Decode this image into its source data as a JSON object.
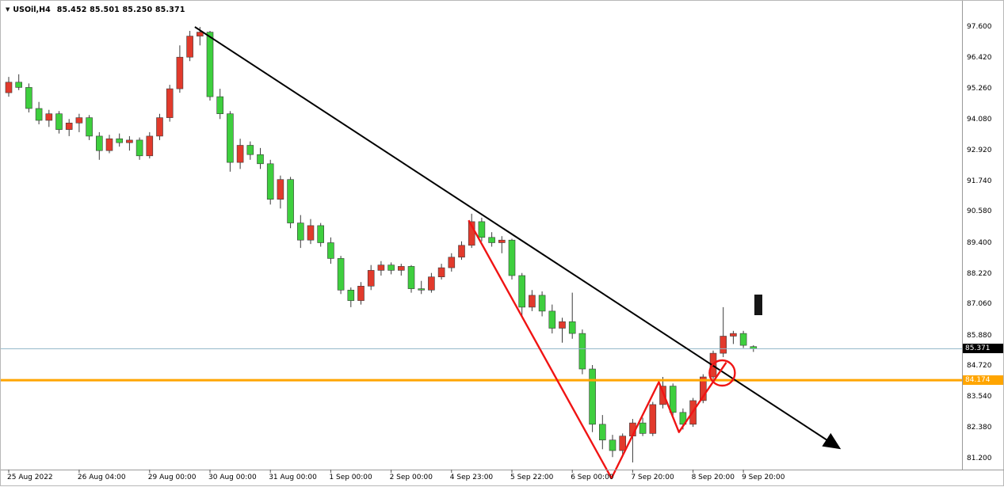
{
  "title_bar": {
    "symbol": "USOil,H4",
    "ohlc_text": "85.452 85.501 85.250 85.371",
    "icon": "chart-symbol-dropdown-icon"
  },
  "colors": {
    "bull": "#e23a2c",
    "bear": "#3ecf3e",
    "wick": "#3a3a3a",
    "trend": "#000000",
    "zigzag": "#f01414",
    "current_line": "#8fb4c6",
    "hline": "#ffa500",
    "axis_border": "#9a9a9a",
    "background": "#ffffff"
  },
  "chart_data": {
    "type": "candlestick",
    "symbol": "USOil",
    "timeframe": "H4",
    "title": "USOil,H4",
    "grid": "off",
    "legend": "none",
    "current_bar": {
      "open": 85.452,
      "high": 85.501,
      "low": 85.25,
      "close": 85.371
    },
    "y_axis_ticks": [
      "97.600",
      "96.420",
      "95.260",
      "94.080",
      "92.920",
      "91.740",
      "90.580",
      "89.400",
      "88.220",
      "87.060",
      "85.880",
      "84.720",
      "83.540",
      "82.380",
      "81.200"
    ],
    "y_range": [
      81.2,
      97.6
    ],
    "x_ticks": [
      {
        "i": 0,
        "label": "25 Aug 2022"
      },
      {
        "i": 7,
        "label": "26 Aug 04:00"
      },
      {
        "i": 14,
        "label": "29 Aug 00:00"
      },
      {
        "i": 20,
        "label": "30 Aug 00:00"
      },
      {
        "i": 26,
        "label": "31 Aug 00:00"
      },
      {
        "i": 32,
        "label": "1 Sep 00:00"
      },
      {
        "i": 38,
        "label": "2 Sep 00:00"
      },
      {
        "i": 44,
        "label": "4 Sep 23:00"
      },
      {
        "i": 50,
        "label": "5 Sep 22:00"
      },
      {
        "i": 56,
        "label": "6 Sep 00:00"
      },
      {
        "i": 62,
        "label": "7 Sep 20:00"
      },
      {
        "i": 68,
        "label": "8 Sep 20:00"
      },
      {
        "i": 73,
        "label": "9 Sep 20:00"
      }
    ],
    "candles_format": [
      "open",
      "high",
      "low",
      "close"
    ],
    "candles": [
      [
        95.1,
        95.7,
        94.95,
        95.5
      ],
      [
        95.5,
        95.8,
        95.2,
        95.3
      ],
      [
        95.3,
        95.45,
        94.35,
        94.5
      ],
      [
        94.5,
        94.75,
        93.9,
        94.05
      ],
      [
        94.05,
        94.45,
        93.8,
        94.3
      ],
      [
        94.3,
        94.4,
        93.55,
        93.7
      ],
      [
        93.7,
        94.1,
        93.45,
        93.95
      ],
      [
        93.95,
        94.3,
        93.6,
        94.15
      ],
      [
        94.15,
        94.25,
        93.3,
        93.45
      ],
      [
        93.45,
        93.6,
        92.55,
        92.9
      ],
      [
        92.9,
        93.5,
        92.8,
        93.35
      ],
      [
        93.35,
        93.55,
        93.05,
        93.2
      ],
      [
        93.2,
        93.45,
        92.9,
        93.3
      ],
      [
        93.3,
        93.4,
        92.55,
        92.7
      ],
      [
        92.7,
        93.6,
        92.6,
        93.45
      ],
      [
        93.45,
        94.3,
        93.3,
        94.15
      ],
      [
        94.15,
        95.4,
        94.0,
        95.25
      ],
      [
        95.25,
        96.9,
        95.1,
        96.45
      ],
      [
        96.45,
        97.45,
        96.3,
        97.25
      ],
      [
        97.25,
        97.6,
        96.9,
        97.4
      ],
      [
        97.4,
        97.45,
        94.8,
        94.95
      ],
      [
        94.95,
        95.25,
        94.1,
        94.3
      ],
      [
        94.3,
        94.4,
        92.1,
        92.45
      ],
      [
        92.45,
        93.35,
        92.2,
        93.1
      ],
      [
        93.1,
        93.25,
        92.55,
        92.75
      ],
      [
        92.75,
        93.0,
        92.2,
        92.4
      ],
      [
        92.4,
        92.55,
        90.85,
        91.05
      ],
      [
        91.05,
        91.95,
        90.7,
        91.8
      ],
      [
        91.8,
        91.9,
        89.95,
        90.15
      ],
      [
        90.15,
        90.45,
        89.2,
        89.5
      ],
      [
        89.5,
        90.3,
        89.35,
        90.05
      ],
      [
        90.05,
        90.15,
        89.25,
        89.4
      ],
      [
        89.4,
        89.6,
        88.6,
        88.8
      ],
      [
        88.8,
        88.9,
        87.45,
        87.6
      ],
      [
        87.6,
        87.7,
        86.95,
        87.2
      ],
      [
        87.2,
        87.9,
        87.05,
        87.75
      ],
      [
        87.75,
        88.55,
        87.6,
        88.35
      ],
      [
        88.35,
        88.7,
        88.15,
        88.55
      ],
      [
        88.55,
        88.65,
        88.2,
        88.35
      ],
      [
        88.35,
        88.6,
        88.15,
        88.5
      ],
      [
        88.5,
        88.55,
        87.5,
        87.65
      ],
      [
        87.65,
        87.95,
        87.45,
        87.6
      ],
      [
        87.6,
        88.25,
        87.5,
        88.1
      ],
      [
        88.1,
        88.6,
        88.0,
        88.45
      ],
      [
        88.45,
        89.0,
        88.3,
        88.85
      ],
      [
        88.85,
        89.45,
        88.75,
        89.3
      ],
      [
        89.3,
        90.5,
        89.2,
        90.2
      ],
      [
        90.2,
        90.35,
        89.45,
        89.6
      ],
      [
        89.6,
        89.8,
        89.25,
        89.4
      ],
      [
        89.4,
        89.65,
        89.0,
        89.5
      ],
      [
        89.5,
        89.55,
        88.0,
        88.15
      ],
      [
        88.15,
        88.25,
        86.6,
        86.95
      ],
      [
        86.95,
        87.6,
        86.8,
        87.4
      ],
      [
        87.4,
        87.55,
        86.6,
        86.8
      ],
      [
        86.8,
        87.05,
        85.95,
        86.15
      ],
      [
        86.15,
        86.55,
        85.6,
        86.4
      ],
      [
        86.4,
        87.5,
        85.75,
        85.95
      ],
      [
        85.95,
        86.1,
        84.4,
        84.6
      ],
      [
        84.6,
        84.75,
        82.2,
        82.5
      ],
      [
        82.5,
        82.85,
        81.55,
        81.9
      ],
      [
        81.9,
        82.1,
        81.25,
        81.5
      ],
      [
        81.5,
        82.15,
        81.35,
        82.05
      ],
      [
        82.05,
        82.7,
        81.05,
        82.55
      ],
      [
        82.55,
        82.75,
        82.05,
        82.15
      ],
      [
        82.15,
        83.35,
        82.05,
        83.25
      ],
      [
        83.25,
        84.3,
        83.1,
        83.95
      ],
      [
        83.95,
        84.05,
        82.8,
        82.95
      ],
      [
        82.95,
        83.1,
        82.3,
        82.5
      ],
      [
        82.5,
        83.5,
        82.4,
        83.4
      ],
      [
        83.4,
        84.4,
        83.3,
        84.3
      ],
      [
        84.3,
        85.3,
        84.15,
        85.2
      ],
      [
        85.2,
        86.95,
        85.05,
        85.85
      ],
      [
        85.85,
        86.05,
        85.55,
        85.95
      ],
      [
        85.95,
        86.05,
        85.4,
        85.5
      ],
      [
        85.452,
        85.501,
        85.25,
        85.371
      ]
    ],
    "price_lines": [
      {
        "name": "current-price-line",
        "price": 85.371,
        "label": "85.371",
        "color": "#8fb4c6",
        "width": 1,
        "badge_bg": "#000000"
      },
      {
        "name": "horizontal-support-line",
        "price": 84.174,
        "label": "84.174",
        "color": "#ffa500",
        "width": 3,
        "badge_bg": "#ffa500"
      }
    ],
    "annotations": {
      "trendline": {
        "type": "descending-trendline-with-arrow",
        "from": {
          "i": 18.5,
          "price": 97.6
        },
        "to": {
          "i": 82.3,
          "price": 81.65
        }
      },
      "zigzag": {
        "type": "red-path-annotation",
        "points": [
          {
            "i": 45.7,
            "price": 90.25
          },
          {
            "i": 59.9,
            "price": 80.45
          },
          {
            "i": 64.6,
            "price": 84.1
          },
          {
            "i": 66.6,
            "price": 82.2
          },
          {
            "i": 71.3,
            "price": 84.85
          }
        ]
      },
      "circle": {
        "type": "breakout-highlight-circle",
        "i": 70.9,
        "price": 84.45,
        "r": 16
      }
    }
  }
}
